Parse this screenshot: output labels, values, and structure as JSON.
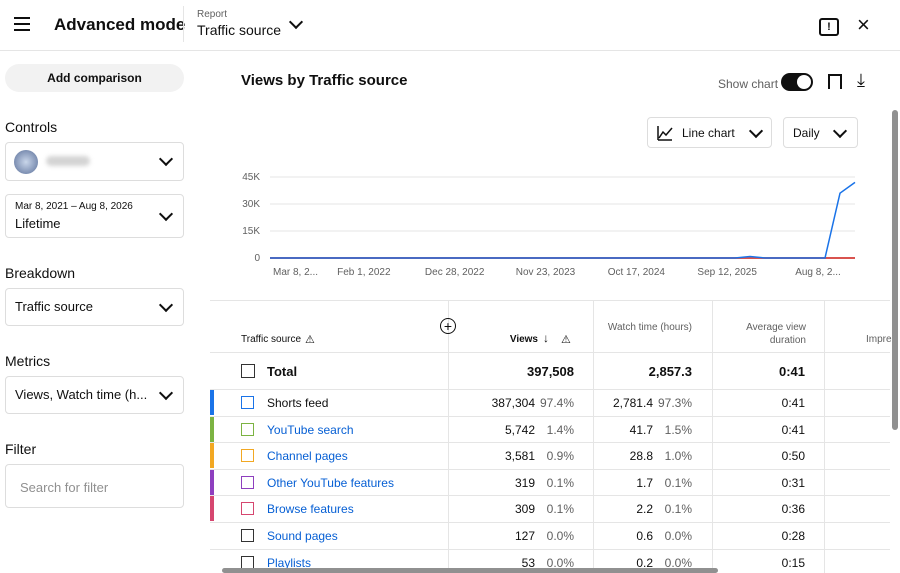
{
  "header": {
    "title": "Advanced mode",
    "report_label": "Report",
    "report": "Traffic source"
  },
  "sidebar": {
    "add_comparison": "Add comparison",
    "controls": "Controls",
    "date_range": "Mar 8, 2021 – Aug 8, 2026",
    "period": "Lifetime",
    "breakdown": "Breakdown",
    "breakdown_value": "Traffic source",
    "metrics": "Metrics",
    "metrics_value": "Views, Watch time (h...",
    "filter": "Filter",
    "filter_placeholder": "Search for filter"
  },
  "report": {
    "title": "Views by Traffic source",
    "show_chart": "Show chart",
    "chart_type": "Line chart",
    "interval": "Daily"
  },
  "chart_data": {
    "type": "line",
    "ylim": [
      0,
      45000
    ],
    "yticks": [
      {
        "value": 0,
        "label": "0"
      },
      {
        "value": 15000,
        "label": "15K"
      },
      {
        "value": 30000,
        "label": "30K"
      },
      {
        "value": 45000,
        "label": "45K"
      }
    ],
    "xtick_labels": [
      "Mar 8, 2...",
      "Feb 1, 2022",
      "Dec 28, 2022",
      "Nov 23, 2023",
      "Oct 17, 2024",
      "Sep 12, 2025",
      "Aug 8, 2..."
    ],
    "grid": true,
    "series": [
      {
        "color": "#d9534f",
        "values": [
          0,
          0
        ]
      },
      {
        "color": "#1a73e8",
        "values": [
          0,
          0,
          0,
          0,
          0,
          0,
          0,
          0,
          0,
          0,
          0,
          0,
          0,
          0,
          0,
          0,
          0,
          0,
          0,
          0,
          0,
          0,
          0,
          0,
          0,
          0,
          0,
          0,
          0,
          0,
          0,
          0,
          800,
          0,
          0,
          0,
          0,
          0,
          36000,
          42000
        ]
      }
    ]
  },
  "table": {
    "headers": [
      "Traffic source",
      "Views",
      "Watch time (hours)",
      "Average view duration",
      "Impre"
    ],
    "total": {
      "name": "Total",
      "views": "397,508",
      "watch": "2,857.3",
      "avd": "0:41"
    },
    "rows": [
      {
        "name": "Shorts feed",
        "color": "#1a73e8",
        "views": "387,304",
        "views_pct": "97.4%",
        "watch": "2,781.4",
        "watch_pct": "97.3%",
        "avd": "0:41"
      },
      {
        "name": "YouTube search",
        "color": "#7cb342",
        "views": "5,742",
        "views_pct": "1.4%",
        "watch": "41.7",
        "watch_pct": "1.5%",
        "avd": "0:41"
      },
      {
        "name": "Channel pages",
        "color": "#f2a823",
        "views": "3,581",
        "views_pct": "0.9%",
        "watch": "28.8",
        "watch_pct": "1.0%",
        "avd": "0:50"
      },
      {
        "name": "Other YouTube features",
        "color": "#8e3fbf",
        "views": "319",
        "views_pct": "0.1%",
        "watch": "1.7",
        "watch_pct": "0.1%",
        "avd": "0:31"
      },
      {
        "name": "Browse features",
        "color": "#d6466f",
        "views": "309",
        "views_pct": "0.1%",
        "watch": "2.2",
        "watch_pct": "0.1%",
        "avd": "0:36"
      },
      {
        "name": "Sound pages",
        "views": "127",
        "views_pct": "0.0%",
        "watch": "0.6",
        "watch_pct": "0.0%",
        "avd": "0:28"
      },
      {
        "name": "Playlists",
        "views": "53",
        "views_pct": "0.0%",
        "watch": "0.2",
        "watch_pct": "0.0%",
        "avd": "0:15"
      }
    ]
  }
}
